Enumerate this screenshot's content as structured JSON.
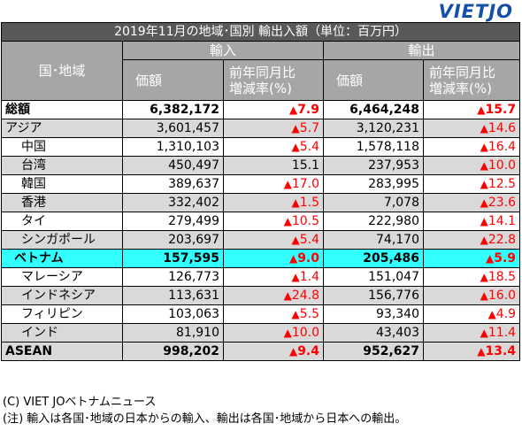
{
  "logo": "VIETJO",
  "title": "2019年11月の地域･国別 輸出入額（単位：百万円）",
  "headers": {
    "region": "国･地域",
    "imports": "輸入",
    "exports": "輸出",
    "value": "価額",
    "yoy_line1": "前年同月比",
    "yoy_line2": "増減率(%)"
  },
  "colors": {
    "down_marker": "#ff0000",
    "title_bg": "#595959",
    "header_bg": "#a6a6a6",
    "highlight_bg": "#33ffff",
    "alt_row_bg": "#d9d9d9"
  },
  "rows": [
    {
      "region": "総額",
      "imp_val": "6,382,172",
      "imp_tri": "▲",
      "imp_pct": "7.9",
      "exp_val": "6,464,248",
      "exp_tri": "▲",
      "exp_pct": "15.7"
    },
    {
      "region": "アジア",
      "imp_val": "3,601,457",
      "imp_tri": "▲",
      "imp_pct": "5.7",
      "exp_val": "3,120,231",
      "exp_tri": "▲",
      "exp_pct": "14.6"
    },
    {
      "region": "中国",
      "imp_val": "1,310,103",
      "imp_tri": "▲",
      "imp_pct": "5.4",
      "exp_val": "1,578,118",
      "exp_tri": "▲",
      "exp_pct": "16.4"
    },
    {
      "region": "台湾",
      "imp_val": "450,497",
      "imp_tri": "",
      "imp_pct": "15.1",
      "exp_val": "237,953",
      "exp_tri": "▲",
      "exp_pct": "10.0"
    },
    {
      "region": "韓国",
      "imp_val": "389,637",
      "imp_tri": "▲",
      "imp_pct": "17.0",
      "exp_val": "283,995",
      "exp_tri": "▲",
      "exp_pct": "12.5"
    },
    {
      "region": "香港",
      "imp_val": "332,402",
      "imp_tri": "▲",
      "imp_pct": "1.5",
      "exp_val": "7,078",
      "exp_tri": "▲",
      "exp_pct": "23.6"
    },
    {
      "region": "タイ",
      "imp_val": "279,499",
      "imp_tri": "▲",
      "imp_pct": "10.5",
      "exp_val": "222,980",
      "exp_tri": "▲",
      "exp_pct": "14.1"
    },
    {
      "region": "シンガポール",
      "imp_val": "203,697",
      "imp_tri": "▲",
      "imp_pct": "5.4",
      "exp_val": "74,170",
      "exp_tri": "▲",
      "exp_pct": "22.8"
    },
    {
      "region": "ベトナム",
      "imp_val": "157,595",
      "imp_tri": "▲",
      "imp_pct": "9.0",
      "exp_val": "205,486",
      "exp_tri": "▲",
      "exp_pct": "5.9"
    },
    {
      "region": "マレーシア",
      "imp_val": "126,773",
      "imp_tri": "▲",
      "imp_pct": "1.4",
      "exp_val": "151,047",
      "exp_tri": "▲",
      "exp_pct": "18.5"
    },
    {
      "region": "インドネシア",
      "imp_val": "113,631",
      "imp_tri": "▲",
      "imp_pct": "24.8",
      "exp_val": "156,776",
      "exp_tri": "▲",
      "exp_pct": "16.0"
    },
    {
      "region": "フィリピン",
      "imp_val": "103,063",
      "imp_tri": "▲",
      "imp_pct": "5.5",
      "exp_val": "93,340",
      "exp_tri": "▲",
      "exp_pct": "4.9"
    },
    {
      "region": "インド",
      "imp_val": "81,910",
      "imp_tri": "▲",
      "imp_pct": "10.0",
      "exp_val": "43,403",
      "exp_tri": "▲",
      "exp_pct": "11.4"
    },
    {
      "region": "ASEAN",
      "imp_val": "998,202",
      "imp_tri": "▲",
      "imp_pct": "9.4",
      "exp_val": "952,627",
      "exp_tri": "▲",
      "exp_pct": "13.4"
    }
  ],
  "footer": {
    "credit": "(C) VIET JOベトナムニュース",
    "note": "(注) 輸入は各国･地域の日本からの輸入、輸出は各国･地域から日本への輸出。"
  }
}
